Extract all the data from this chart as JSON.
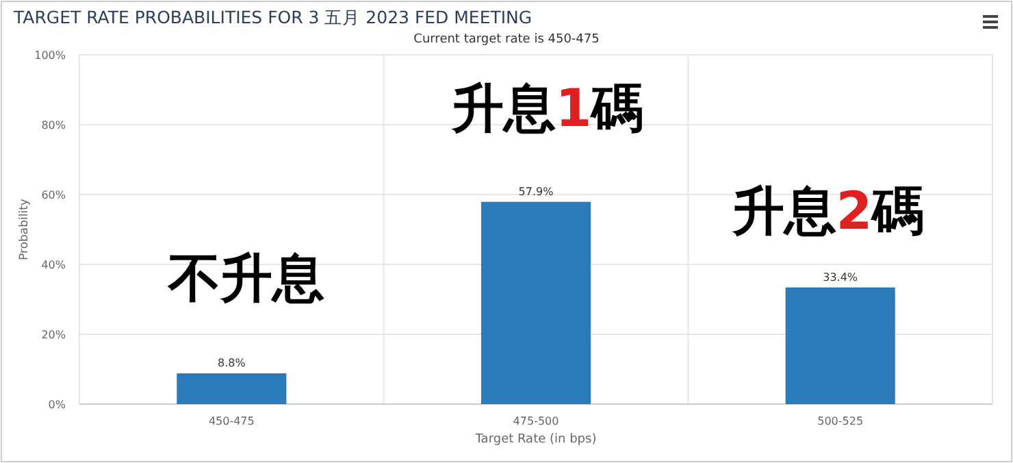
{
  "chart_data": {
    "type": "bar",
    "title": "TARGET RATE PROBABILITIES FOR 3 五月 2023 FED MEETING",
    "subtitle": "Current target rate is 450-475",
    "xlabel": "Target Rate (in bps)",
    "ylabel": "Probability",
    "categories": [
      "450-475",
      "475-500",
      "500-525"
    ],
    "values": [
      8.8,
      57.9,
      33.4
    ],
    "value_labels": [
      "8.8%",
      "57.9%",
      "33.4%"
    ],
    "color": "#2b7bba",
    "ylim": [
      0,
      100
    ],
    "yticks": [
      {
        "value": 0,
        "label": "0%"
      },
      {
        "value": 20,
        "label": "20%"
      },
      {
        "value": 40,
        "label": "40%"
      },
      {
        "value": 60,
        "label": "60%"
      },
      {
        "value": 80,
        "label": "80%"
      },
      {
        "value": 100,
        "label": "100%"
      }
    ],
    "grid": true,
    "annotations": [
      "不升息",
      "升息1碼",
      "升息2碼"
    ]
  }
}
